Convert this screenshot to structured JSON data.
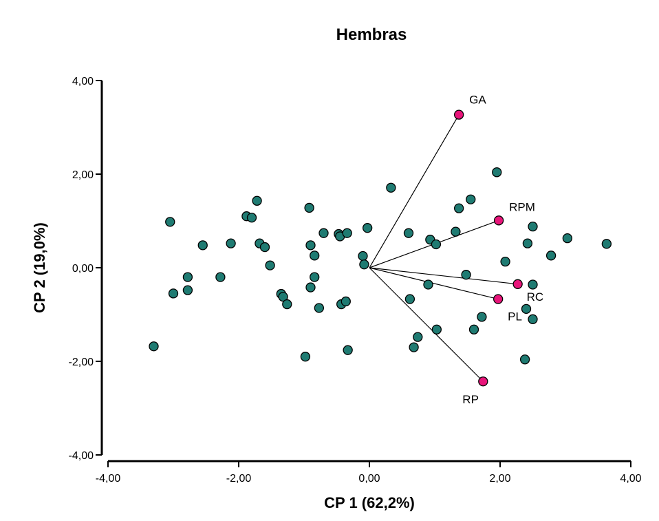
{
  "chart_data": {
    "type": "scatter",
    "title": "Hembras",
    "xlabel": "CP 1 (62,2%)",
    "ylabel": "CP 2 (19,0%)",
    "xlim": [
      -4,
      4
    ],
    "ylim": [
      -4,
      4
    ],
    "xticks": [
      -4,
      -2,
      0,
      2,
      4
    ],
    "yticks": [
      -4,
      -2,
      0,
      2,
      4
    ],
    "xtick_labels": [
      "-4,00",
      "-2,00",
      "0,00",
      "2,00",
      "4,00"
    ],
    "ytick_labels": [
      "-4,00",
      "-2,00",
      "0,00",
      "2,00",
      "4,00"
    ],
    "grid": false,
    "colors": {
      "observations": "#1f7b72",
      "variables": "#e8157a"
    },
    "series": [
      {
        "name": "observations",
        "points": [
          [
            -3.3,
            -1.68
          ],
          [
            -3.05,
            0.98
          ],
          [
            -3.0,
            -0.55
          ],
          [
            -2.78,
            -0.2
          ],
          [
            -2.78,
            -0.48
          ],
          [
            -2.55,
            0.48
          ],
          [
            -2.28,
            -0.2
          ],
          [
            -2.12,
            0.52
          ],
          [
            -1.88,
            1.1
          ],
          [
            -1.8,
            1.07
          ],
          [
            -1.72,
            1.43
          ],
          [
            -1.68,
            0.52
          ],
          [
            -1.6,
            0.44
          ],
          [
            -1.52,
            0.05
          ],
          [
            -1.35,
            -0.56
          ],
          [
            -1.32,
            -0.62
          ],
          [
            -1.26,
            -0.78
          ],
          [
            -0.98,
            -1.9
          ],
          [
            -0.92,
            1.28
          ],
          [
            -0.9,
            0.48
          ],
          [
            -0.9,
            -0.42
          ],
          [
            -0.84,
            -0.2
          ],
          [
            -0.84,
            0.26
          ],
          [
            -0.77,
            -0.86
          ],
          [
            -0.7,
            0.74
          ],
          [
            -0.47,
            0.72
          ],
          [
            -0.45,
            0.67
          ],
          [
            -0.43,
            -0.78
          ],
          [
            -0.36,
            -0.72
          ],
          [
            -0.34,
            0.74
          ],
          [
            -0.33,
            -1.76
          ],
          [
            -0.1,
            0.25
          ],
          [
            -0.08,
            0.07
          ],
          [
            -0.03,
            0.85
          ],
          [
            0.33,
            1.71
          ],
          [
            0.6,
            0.74
          ],
          [
            0.62,
            -0.67
          ],
          [
            0.68,
            -1.7
          ],
          [
            0.74,
            -1.48
          ],
          [
            0.9,
            -0.36
          ],
          [
            0.93,
            0.6
          ],
          [
            1.02,
            0.5
          ],
          [
            1.03,
            -1.32
          ],
          [
            1.32,
            0.77
          ],
          [
            1.37,
            1.27
          ],
          [
            1.48,
            -0.15
          ],
          [
            1.55,
            1.46
          ],
          [
            1.6,
            -1.32
          ],
          [
            1.72,
            -1.05
          ],
          [
            1.95,
            2.04
          ],
          [
            2.08,
            0.13
          ],
          [
            2.4,
            -0.88
          ],
          [
            2.42,
            0.52
          ],
          [
            2.38,
            -1.96
          ],
          [
            2.5,
            0.88
          ],
          [
            2.5,
            -0.36
          ],
          [
            2.5,
            -1.1
          ],
          [
            2.78,
            0.26
          ],
          [
            3.03,
            0.63
          ],
          [
            3.63,
            0.51
          ]
        ]
      },
      {
        "name": "variables",
        "points": [
          {
            "label": "GA",
            "x": 1.37,
            "y": 3.27
          },
          {
            "label": "RPM",
            "x": 1.98,
            "y": 1.01
          },
          {
            "label": "RC",
            "x": 2.27,
            "y": -0.35
          },
          {
            "label": "PL",
            "x": 1.97,
            "y": -0.67
          },
          {
            "label": "RP",
            "x": 1.74,
            "y": -2.43
          }
        ]
      }
    ]
  }
}
